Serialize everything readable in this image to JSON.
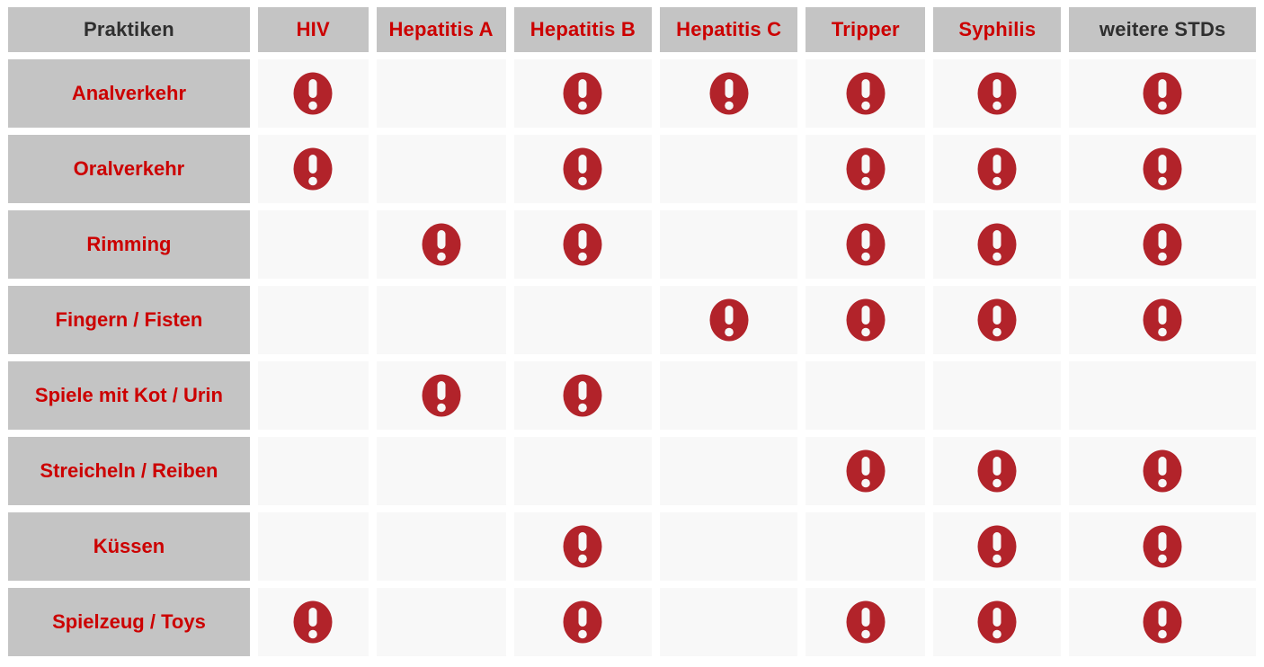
{
  "colors": {
    "header_cell_bg": "#c4c4c4",
    "data_cell_bg": "#f8f8f8",
    "red_text": "#cc0000",
    "dark_text": "#2f2f2f",
    "icon_fill": "#b2232a",
    "icon_glyph_fill": "#f7f7f7"
  },
  "chart_data": {
    "type": "table",
    "marker": "red-exclamation-warning-icon means risk present, empty cell means no risk shown",
    "columns": [
      {
        "label": "Praktiken",
        "text_color": "dark"
      },
      {
        "label": "HIV",
        "text_color": "red"
      },
      {
        "label": "Hepatitis A",
        "text_color": "red"
      },
      {
        "label": "Hepatitis B",
        "text_color": "red"
      },
      {
        "label": "Hepatitis C",
        "text_color": "red"
      },
      {
        "label": "Tripper",
        "text_color": "red"
      },
      {
        "label": "Syphilis",
        "text_color": "red"
      },
      {
        "label": "weitere STDs",
        "text_color": "dark"
      }
    ],
    "rows": [
      {
        "label": "Analverkehr",
        "risks": [
          true,
          false,
          true,
          true,
          true,
          true,
          true
        ]
      },
      {
        "label": "Oralverkehr",
        "risks": [
          true,
          false,
          true,
          false,
          true,
          true,
          true
        ]
      },
      {
        "label": "Rimming",
        "risks": [
          false,
          true,
          true,
          false,
          true,
          true,
          true
        ]
      },
      {
        "label": "Fingern / Fisten",
        "risks": [
          false,
          false,
          false,
          true,
          true,
          true,
          true
        ]
      },
      {
        "label": "Spiele mit Kot / Urin",
        "risks": [
          false,
          true,
          true,
          false,
          false,
          false,
          false
        ]
      },
      {
        "label": "Streicheln / Reiben",
        "risks": [
          false,
          false,
          false,
          false,
          true,
          true,
          true
        ]
      },
      {
        "label": "Küssen",
        "risks": [
          false,
          false,
          true,
          false,
          false,
          true,
          true
        ]
      },
      {
        "label": "Spielzeug / Toys",
        "risks": [
          true,
          false,
          true,
          false,
          true,
          true,
          true
        ]
      }
    ]
  }
}
